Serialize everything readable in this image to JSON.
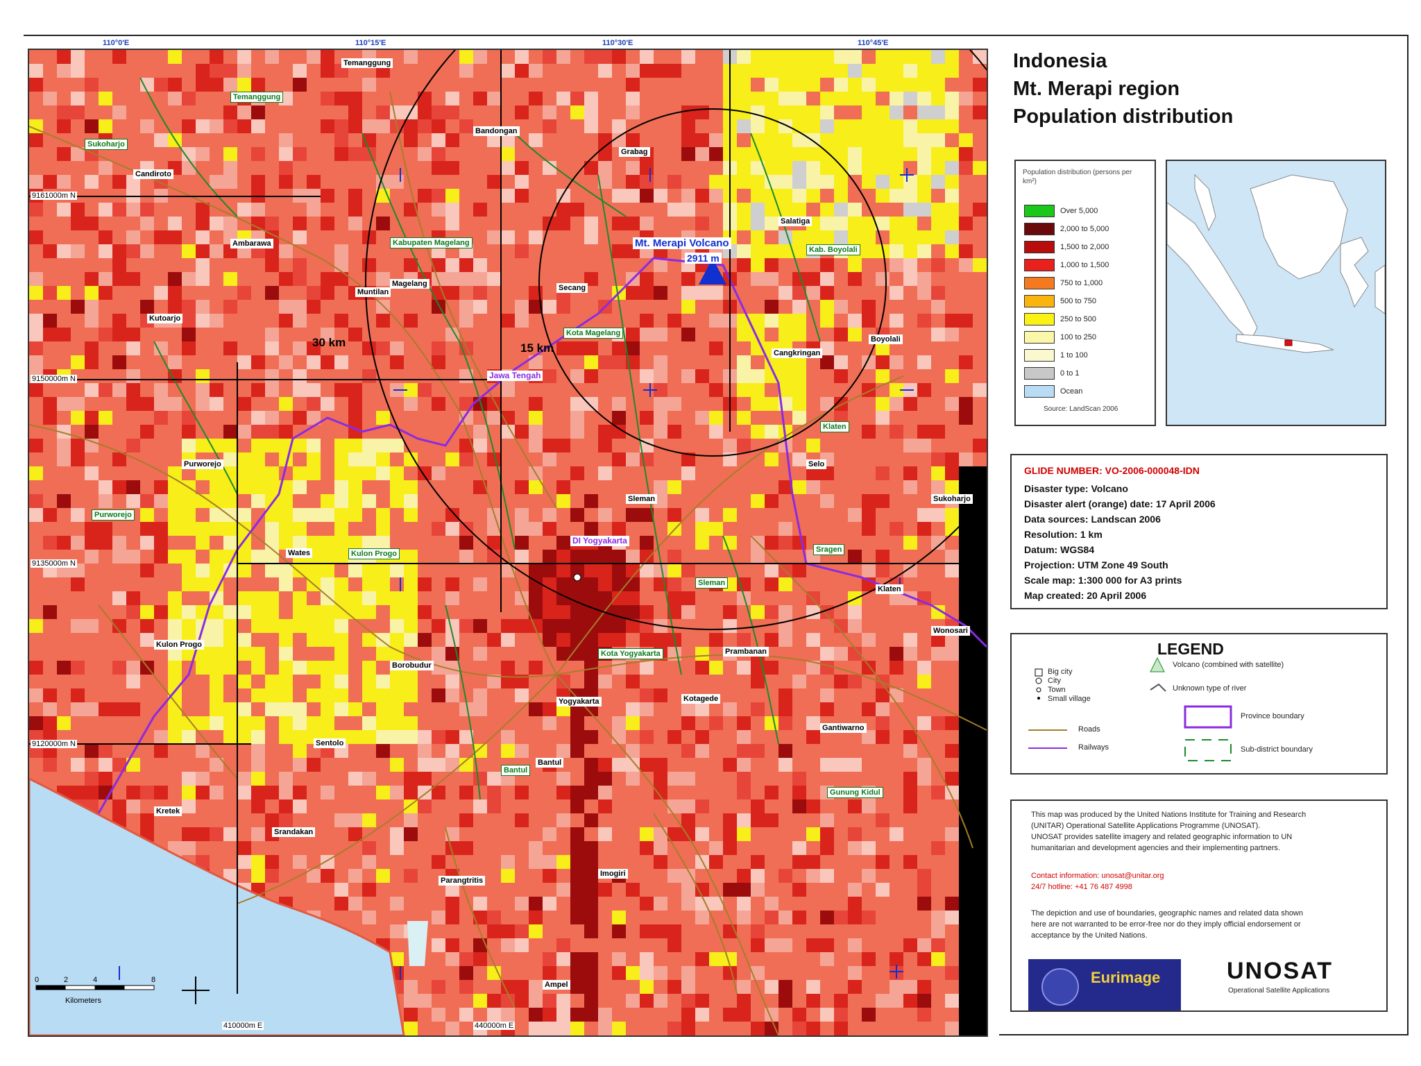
{
  "title": {
    "line1": "Indonesia",
    "line2": "Mt. Merapi region",
    "line3": "Population distribution"
  },
  "top_coords": [
    "110°0'E",
    "110°15'E",
    "110°30'E",
    "110°45'E"
  ],
  "grid_labels": [
    "9161000m N",
    "9150000m N",
    "9135000m N",
    "9120000m N",
    "410000m E",
    "440000m E"
  ],
  "ring_labels": {
    "outer": "30 km",
    "inner": "15 km"
  },
  "volcano": {
    "name": "Mt. Merapi Volcano",
    "elevation": "2911 m"
  },
  "places": [
    "Temanggung",
    "Candiroto",
    "Ambarawa",
    "Bandongan",
    "Magelang",
    "Secang",
    "Grabag",
    "Salatiga",
    "Boyolali",
    "Klaten",
    "Sleman",
    "Sukoharjo",
    "Bantul",
    "Wonosari",
    "Yogyakarta",
    "Kotagede",
    "Muntilan",
    "Borobudur",
    "Kutoarjo",
    "Purworejo",
    "Kulon Progo",
    "Wates",
    "Sentolo",
    "Srandakan",
    "Parangtritis",
    "Kretek",
    "Imogiri",
    "Prambanan",
    "Gantiwarno",
    "Cangkringan",
    "Selo",
    "Ampel"
  ],
  "green_places": [
    "Temanggung",
    "Kabupaten Magelang",
    "Kab. Boyolali",
    "Kota Magelang",
    "Purworejo",
    "Kulon Progo",
    "Sleman",
    "Kota Yogyakarta",
    "Bantul",
    "Klaten",
    "Gunung Kidul",
    "Sukoharjo",
    "Sragen"
  ],
  "province_label": "DI Yogyakarta",
  "province_label2": "Jawa Tengah",
  "density_legend": {
    "heading": "Population distribution (persons per km²)",
    "classes": [
      {
        "label": "Over 5,000",
        "color": "#19c819"
      },
      {
        "label": "2,000 to 5,000",
        "color": "#6a0a0a"
      },
      {
        "label": "1,500 to 2,000",
        "color": "#b80d0d"
      },
      {
        "label": "1,000 to 1,500",
        "color": "#e8201e"
      },
      {
        "label": "750 to 1,000",
        "color": "#f57a1f"
      },
      {
        "label": "500 to 750",
        "color": "#fbb40d"
      },
      {
        "label": "250 to 500",
        "color": "#fbf215"
      },
      {
        "label": "100 to 250",
        "color": "#fbf7a8"
      },
      {
        "label": "1 to 100",
        "color": "#fbf7cf"
      },
      {
        "label": "0 to 1",
        "color": "#c8c8c8"
      },
      {
        "label": "Ocean",
        "color": "#b9dcf5"
      }
    ],
    "footer": "Source: LandScan 2006"
  },
  "info": {
    "glide": "GLIDE NUMBER: VO-2006-000048-IDN",
    "lines": [
      "Disaster type: Volcano",
      "Disaster alert (orange) date: 17 April 2006",
      "Data sources: Landscan 2006",
      "Resolution: 1 km",
      "Datum: WGS84",
      "Projection: UTM Zone 49 South",
      "Scale map: 1:300 000 for A3 prints",
      "Map created: 20 April 2006"
    ]
  },
  "legend": {
    "title": "LEGEND",
    "settlements": [
      "Big city",
      "City",
      "Town",
      "Small village"
    ],
    "roads": "Roads",
    "railways": "Railways",
    "items": [
      "Volcano (combined with satellite)",
      "Unknown type of river",
      "Province boundary",
      "Sub-district boundary"
    ]
  },
  "credits": {
    "lines": [
      "This map was produced by the United Nations Institute for Training and Research",
      "(UNITAR) Operational Satellite Applications Programme (UNOSAT).",
      "UNOSAT provides satellite imagery and related geographic information to UN",
      "humanitarian and development agencies and their implementing partners."
    ],
    "red_lines": [
      "Contact information: unosat@unitar.org",
      "24/7 hotline: +41 76 487 4998"
    ],
    "disclaimer": [
      "The depiction and use of boundaries, geographic names and related data shown",
      "here are not warranted to be error-free nor do they imply official endorsement or",
      "acceptance by the United Nations."
    ],
    "logo_left": "Eurimage",
    "logo_right": "UNOSAT",
    "logo_right_sub": "Operational Satellite Applications"
  },
  "scale_bar": {
    "label": "Kilometers",
    "ticks": [
      "0",
      "2",
      "4",
      "8"
    ]
  },
  "colors": {
    "ocean": "#b9dcf5",
    "province_boundary": "#8a2be2",
    "roads": "#a67d2a",
    "rivers": "#1b8a2a",
    "volcano": "#1030d0"
  }
}
